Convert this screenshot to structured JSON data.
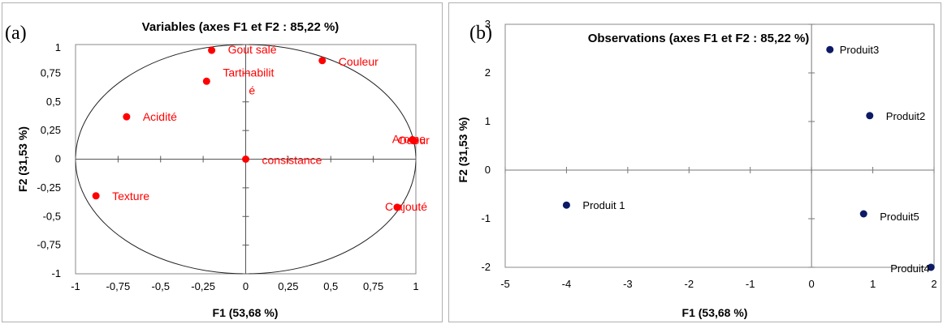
{
  "chart_data": [
    {
      "type": "scatter",
      "panel_label": "(a)",
      "title": "Variables (axes F1 et F2 : 85,22 %)",
      "xlabel": "F1 (53,68 %)",
      "ylabel": "F2 (31,53 %)",
      "xlim": [
        -1,
        1
      ],
      "ylim": [
        -1,
        1
      ],
      "x_ticks": [
        -1,
        -0.75,
        -0.5,
        -0.25,
        0,
        0.25,
        0.5,
        0.75,
        1
      ],
      "x_tick_labels": [
        "-1",
        "-0,75",
        "-0,5",
        "-0,25",
        "0",
        "0,25",
        "0,5",
        "0,75",
        "1"
      ],
      "y_ticks": [
        -1,
        -0.75,
        -0.5,
        -0.25,
        0,
        0.25,
        0.5,
        0.75,
        1
      ],
      "y_tick_labels": [
        "-1",
        "-0,75",
        "-0,5",
        "-0,25",
        "0",
        "0,25",
        "0,5",
        "0,75",
        "1"
      ],
      "correlation_circle": true,
      "point_color": "#ff0000",
      "label_color": "#ff0000",
      "points": [
        {
          "label": "Gout salé",
          "x": -0.2,
          "y": 0.95
        },
        {
          "label": "Couleur",
          "x": 0.45,
          "y": 0.86
        },
        {
          "label": "Tartinabilit",
          "label_line2": "é",
          "x": -0.23,
          "y": 0.68
        },
        {
          "label": "Acidité",
          "x": -0.7,
          "y": 0.37
        },
        {
          "label": "Arome",
          "x": 0.98,
          "y": 0.17
        },
        {
          "label": "Odeur",
          "x": 0.99,
          "y": 0.16
        },
        {
          "label": "consistance",
          "x": 0.0,
          "y": 0.0
        },
        {
          "label": "Texture",
          "x": -0.88,
          "y": -0.32
        },
        {
          "label": "C ajouté",
          "x": 0.89,
          "y": -0.42
        }
      ]
    },
    {
      "type": "scatter",
      "panel_label": "(b)",
      "title": "Observations (axes F1 et F2 : 85,22 %)",
      "xlabel": "F1 (53,68 %)",
      "ylabel": "F2 (31,53 %)",
      "xlim": [
        -5,
        2
      ],
      "ylim": [
        -2,
        3
      ],
      "x_ticks": [
        -5,
        -4,
        -3,
        -2,
        -1,
        0,
        1,
        2
      ],
      "x_tick_labels": [
        "-5",
        "-4",
        "-3",
        "-2",
        "-1",
        "0",
        "1",
        "2"
      ],
      "y_ticks": [
        -2,
        -1,
        0,
        1,
        2,
        3
      ],
      "y_tick_labels": [
        "-2",
        "-1",
        "0",
        "1",
        "2",
        "3"
      ],
      "point_color": "#0d1a66",
      "label_color": "#000000",
      "points": [
        {
          "label": "Produit 1",
          "x": -4.0,
          "y": -0.72
        },
        {
          "label": "Produit2",
          "x": 0.95,
          "y": 1.12
        },
        {
          "label": "Produit3",
          "x": 0.3,
          "y": 2.48
        },
        {
          "label": "Produit4",
          "x": 1.95,
          "y": -2.0
        },
        {
          "label": "Produit5",
          "x": 0.85,
          "y": -0.9
        }
      ]
    }
  ]
}
